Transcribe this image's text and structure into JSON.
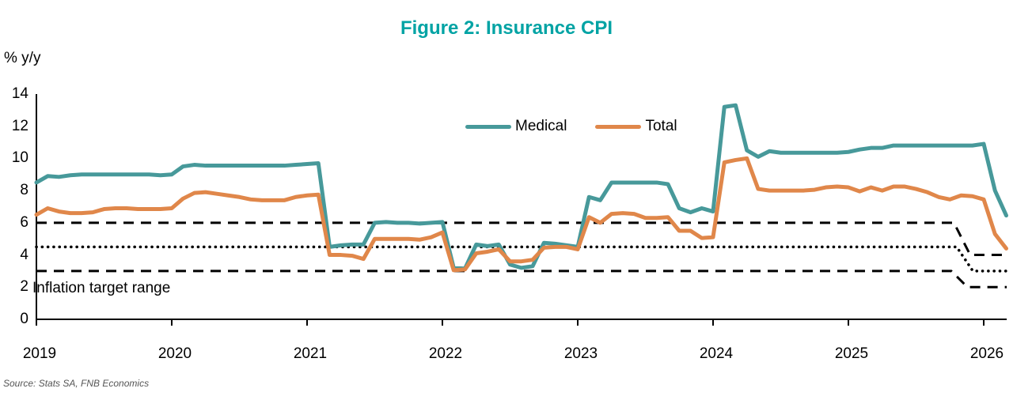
{
  "page": {
    "background": "#ffffff"
  },
  "source": "Source: Stats SA, FNB Economics",
  "chart_data": {
    "type": "line",
    "title": "Figure 2: Insurance CPI",
    "title_color": "#00a3a4",
    "ylabel": "% y/y",
    "annotation": "Inflation target range",
    "legend": [
      "Medical",
      "Total"
    ],
    "legend_position": "inside-top-center",
    "grid": false,
    "x_frequency": "monthly",
    "x_start": "2019-01",
    "x_end": "2026-03",
    "x_tick_years": [
      2019,
      2020,
      2021,
      2022,
      2023,
      2024,
      2025,
      2026
    ],
    "y_ticks": [
      0,
      2,
      4,
      6,
      8,
      10,
      12,
      14
    ],
    "ylim": [
      0,
      14
    ],
    "xlim_years": [
      2019.0,
      2026.17
    ],
    "series": [
      {
        "name": "Medical",
        "color": "#47999a",
        "values": [
          8.5,
          8.9,
          8.85,
          8.95,
          9.0,
          9.0,
          9.0,
          9.0,
          9.0,
          9.0,
          9.0,
          8.95,
          9.0,
          9.5,
          9.6,
          9.55,
          9.55,
          9.55,
          9.55,
          9.55,
          9.55,
          9.55,
          9.55,
          9.6,
          9.65,
          9.7,
          4.5,
          4.6,
          4.65,
          4.65,
          6.0,
          6.05,
          6.0,
          6.0,
          5.95,
          6.0,
          6.05,
          3.2,
          3.15,
          4.65,
          4.55,
          4.65,
          3.4,
          3.2,
          3.3,
          4.75,
          4.7,
          4.6,
          4.5,
          7.6,
          7.4,
          8.5,
          8.5,
          8.5,
          8.5,
          8.5,
          8.4,
          6.9,
          6.65,
          6.9,
          6.7,
          13.2,
          13.3,
          10.5,
          10.1,
          10.45,
          10.35,
          10.35,
          10.35,
          10.35,
          10.35,
          10.35,
          10.4,
          10.55,
          10.65,
          10.65,
          10.8,
          10.8,
          10.8,
          10.8,
          10.8,
          10.8,
          10.8,
          10.8,
          10.9,
          8.0,
          6.45
        ]
      },
      {
        "name": "Total",
        "color": "#e0874a",
        "values": [
          6.5,
          6.9,
          6.7,
          6.6,
          6.6,
          6.65,
          6.85,
          6.9,
          6.9,
          6.85,
          6.85,
          6.85,
          6.9,
          7.5,
          7.85,
          7.9,
          7.8,
          7.7,
          7.6,
          7.45,
          7.4,
          7.4,
          7.4,
          7.6,
          7.7,
          7.75,
          4.0,
          4.0,
          3.95,
          3.75,
          5.0,
          5.0,
          5.0,
          5.0,
          4.95,
          5.1,
          5.4,
          3.05,
          3.1,
          4.1,
          4.2,
          4.35,
          3.6,
          3.6,
          3.7,
          4.45,
          4.5,
          4.5,
          4.35,
          6.35,
          6.0,
          6.55,
          6.6,
          6.55,
          6.3,
          6.3,
          6.35,
          5.5,
          5.5,
          5.05,
          5.1,
          9.75,
          9.9,
          10.0,
          8.1,
          8.0,
          8.0,
          8.0,
          8.0,
          8.05,
          8.2,
          8.25,
          8.2,
          7.95,
          8.2,
          8.0,
          8.25,
          8.25,
          8.1,
          7.9,
          7.6,
          7.45,
          7.7,
          7.65,
          7.45,
          5.3,
          4.4
        ]
      }
    ],
    "target_lines": [
      {
        "name": "range-upper",
        "style": "dashed",
        "color": "#000000",
        "points": [
          [
            2019.0,
            6.0
          ],
          [
            2025.78,
            6.0
          ],
          [
            2025.9,
            4.0
          ],
          [
            2026.17,
            4.0
          ]
        ]
      },
      {
        "name": "midpoint",
        "style": "dotted",
        "color": "#000000",
        "points": [
          [
            2019.0,
            4.5
          ],
          [
            2025.8,
            4.5
          ],
          [
            2025.92,
            3.0
          ],
          [
            2026.17,
            3.0
          ]
        ]
      },
      {
        "name": "range-lower",
        "style": "dashed",
        "color": "#000000",
        "points": [
          [
            2019.0,
            3.0
          ],
          [
            2025.76,
            3.0
          ],
          [
            2025.88,
            2.0
          ],
          [
            2026.17,
            2.0
          ]
        ]
      }
    ]
  }
}
